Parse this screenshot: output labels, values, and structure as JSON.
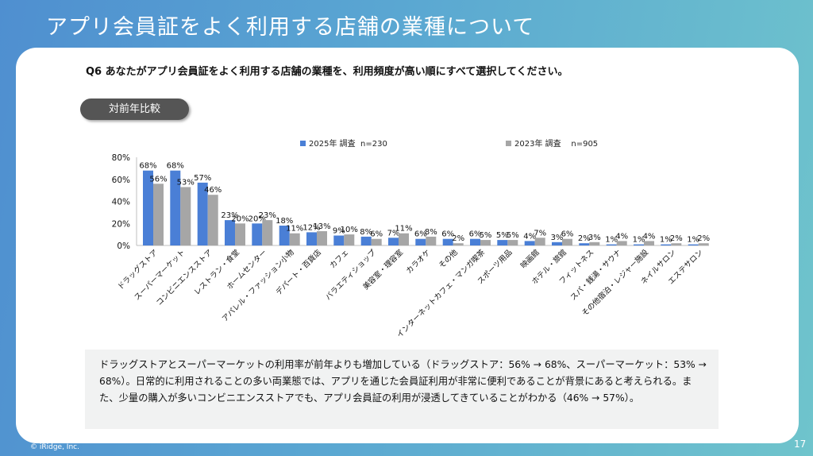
{
  "slide": {
    "title": "アプリ会員証をよく利用する店舗の業種について",
    "question": "Q6 あなたがアプリ会員証をよく利用する店舗の業種を、利用頻度が高い順にすべて選択してください。",
    "badge": "対前年比較",
    "note": "ドラッグストアとスーパーマーケットの利用率が前年よりも増加している（ドラッグストア：56% → 68%、スーパーマーケット：53% → 68%）。日常的に利用されることの多い両業態では、アプリを通じた会員証利用が非常に便利であることが背景にあると考えられる。また、少量の購入が多いコンビニエンスストアでも、アプリ会員証の利用が浸透してきていることがわかる（46% → 57%）。",
    "copyright": "© iRidge, Inc.",
    "page_number": "17"
  },
  "colors": {
    "series_2025": "#4a7fd6",
    "series_2023": "#a6a6a6",
    "axis": "#bfbfbf",
    "text": "#111111"
  },
  "chart_data": {
    "type": "bar",
    "title": "",
    "xlabel": "",
    "ylabel": "",
    "ylim": [
      0,
      80
    ],
    "yticks": [
      "0%",
      "20%",
      "40%",
      "60%",
      "80%"
    ],
    "legend_position": "top",
    "grid": false,
    "categories": [
      "ドラッグストア",
      "スーパーマーケット",
      "コンビニエンスストア",
      "レストラン・食堂",
      "ホームセンター",
      "アパレル・ファッション小物",
      "デパート・百貨店",
      "カフェ",
      "バラエティショップ",
      "美容室・理容室",
      "カラオケ",
      "その他",
      "インターネットカフェ・マンガ喫茶",
      "スポーツ用品",
      "映画館",
      "ホテル・旅館",
      "フィットネス",
      "スパ・銭湯・サウナ",
      "その他宿泊・レジャー施設",
      "ネイルサロン",
      "エステサロン"
    ],
    "series": [
      {
        "name": "2025年 調査",
        "n_label": "n=230",
        "values": [
          68,
          68,
          57,
          23,
          20,
          18,
          12,
          9,
          8,
          7,
          6,
          6,
          6,
          5,
          4,
          3,
          2,
          1,
          1,
          1,
          1
        ],
        "labels": [
          "68%",
          "68%",
          "57%",
          "23%",
          "20%",
          "18%",
          "12%",
          "9%",
          "8%",
          "7%",
          "6%",
          "6%",
          "6%",
          "5%",
          "4%",
          "3%",
          "2%",
          "1%",
          "1%",
          "1%",
          "1%"
        ]
      },
      {
        "name": "2023年 調査",
        "n_label": "n=905",
        "values": [
          56,
          53,
          46,
          20,
          23,
          11,
          13,
          10,
          6,
          11,
          8,
          2,
          5,
          5,
          7,
          6,
          3,
          4,
          4,
          2,
          2
        ],
        "labels": [
          "56%",
          "53%",
          "46%",
          "20%",
          "23%",
          "11%",
          "13%",
          "10%",
          "6%",
          "11%",
          "8%",
          "2%",
          "5%",
          "5%",
          "7%",
          "6%",
          "3%",
          "4%",
          "4%",
          "2%",
          "2%"
        ]
      }
    ]
  }
}
